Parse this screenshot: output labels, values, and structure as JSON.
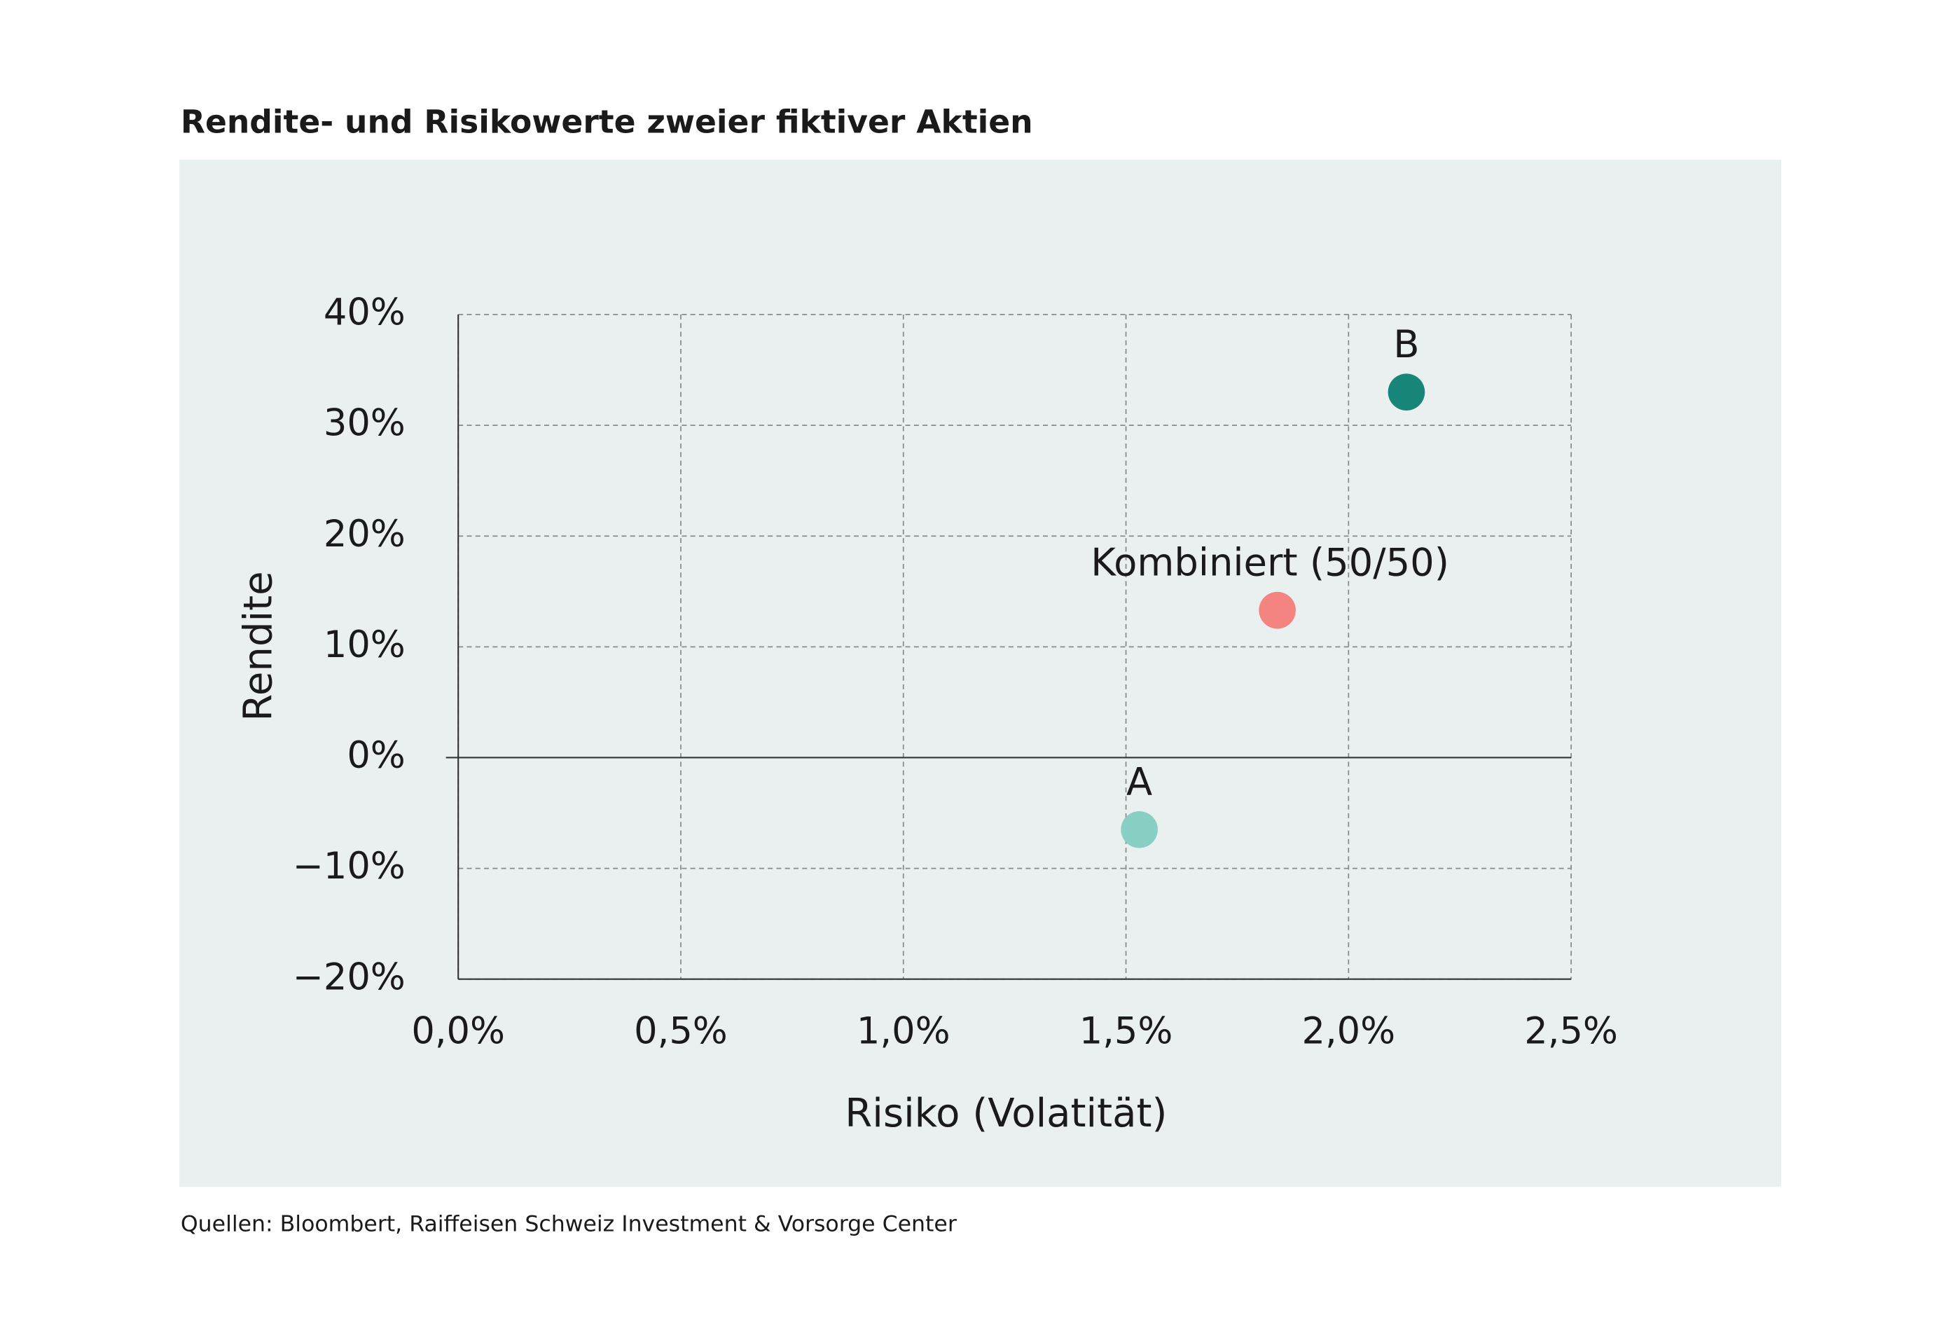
{
  "chart_data": {
    "type": "scatter",
    "title": "Rendite- und Risikowerte zweier fiktiver Aktien",
    "x_label": "Risiko (Volatität)",
    "y_label": "Rendite",
    "source": "Quellen: Bloombert, Raiffeisen Schweiz Investment & Vorsorge Center",
    "series": [
      {
        "name": "A",
        "color": "#88cfc4",
        "x": [
          1.53
        ],
        "values": [
          -6.5
        ]
      },
      {
        "name": "B",
        "color": "#17857a",
        "x": [
          2.13
        ],
        "values": [
          33
        ]
      },
      {
        "name": "Kombiniert (50/50)",
        "color": "#f48481",
        "x": [
          1.84
        ],
        "values": [
          13.3
        ]
      }
    ],
    "xlim": [
      0,
      2.5
    ],
    "xticks": [
      {
        "value": 0,
        "label": "0,0%"
      },
      {
        "value": 0.5,
        "label": "0,5%"
      },
      {
        "value": 1,
        "label": "1,0%"
      },
      {
        "value": 1.5,
        "label": "1,5%"
      },
      {
        "value": 2,
        "label": "2,0%"
      },
      {
        "value": 2.5,
        "label": "2,5%"
      }
    ],
    "ylim": [
      -20,
      40
    ],
    "yticks": [
      {
        "value": -20,
        "label": "−20%"
      },
      {
        "value": -10,
        "label": "−10%"
      },
      {
        "value": 0,
        "label": "0%"
      },
      {
        "value": 10,
        "label": "10%"
      },
      {
        "value": 20,
        "label": "20%"
      },
      {
        "value": 30,
        "label": "30%"
      },
      {
        "value": 40,
        "label": "40%"
      }
    ],
    "grid": true
  }
}
